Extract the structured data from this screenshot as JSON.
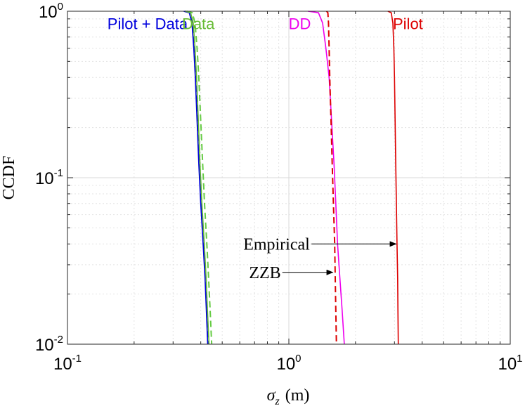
{
  "chart_data": {
    "type": "line",
    "title": "",
    "xlabel_symbol": "σ",
    "xlabel_sub": "z",
    "xlabel_unit": "(m)",
    "ylabel": "CCDF",
    "xscale": "log",
    "yscale": "log",
    "xlim": [
      0.1,
      10
    ],
    "ylim": [
      0.01,
      1
    ],
    "grid": true,
    "x_ticks": [
      {
        "value": 0.1,
        "base": "10",
        "exp": "-1"
      },
      {
        "value": 1,
        "base": "10",
        "exp": "0"
      },
      {
        "value": 10,
        "base": "10",
        "exp": "1"
      }
    ],
    "y_ticks": [
      {
        "value": 0.01,
        "base": "10",
        "exp": "-2"
      },
      {
        "value": 0.1,
        "base": "10",
        "exp": "-1"
      },
      {
        "value": 1,
        "base": "10",
        "exp": "0"
      }
    ],
    "series": [
      {
        "name": "Pilot + Data",
        "color": "#0000dd",
        "style": "solid",
        "x": [
          0.335,
          0.355,
          0.365,
          0.372,
          0.378,
          0.385,
          0.392,
          0.4,
          0.41,
          0.418,
          0.424,
          0.43
        ],
        "y": [
          1.0,
          0.98,
          0.85,
          0.6,
          0.4,
          0.22,
          0.12,
          0.07,
          0.04,
          0.025,
          0.016,
          0.01
        ]
      },
      {
        "name": "Pilot + Data ZZB",
        "color": "#0000dd",
        "style": "dashed",
        "x": [
          0.338,
          0.357,
          0.367,
          0.374,
          0.38,
          0.387,
          0.394,
          0.402,
          0.412,
          0.42,
          0.426,
          0.432
        ],
        "y": [
          1.0,
          0.98,
          0.85,
          0.6,
          0.4,
          0.22,
          0.12,
          0.07,
          0.04,
          0.025,
          0.016,
          0.01
        ]
      },
      {
        "name": "Data",
        "color": "#66bb33",
        "style": "solid",
        "x": [
          0.34,
          0.36,
          0.37,
          0.377,
          0.383,
          0.39,
          0.397,
          0.405,
          0.415,
          0.423,
          0.429,
          0.436
        ],
        "y": [
          1.0,
          0.98,
          0.85,
          0.6,
          0.4,
          0.22,
          0.12,
          0.07,
          0.04,
          0.025,
          0.016,
          0.01
        ]
      },
      {
        "name": "Data ZZB",
        "color": "#66cc44",
        "style": "dashed",
        "x": [
          0.345,
          0.366,
          0.377,
          0.385,
          0.392,
          0.4,
          0.408,
          0.416,
          0.426,
          0.434,
          0.441,
          0.448
        ],
        "y": [
          1.0,
          0.98,
          0.85,
          0.6,
          0.4,
          0.22,
          0.12,
          0.07,
          0.04,
          0.025,
          0.016,
          0.01
        ]
      },
      {
        "name": "DD",
        "color": "#ee00ee",
        "style": "solid",
        "x": [
          1.22,
          1.36,
          1.42,
          1.47,
          1.52,
          1.56,
          1.6,
          1.63,
          1.66,
          1.7,
          1.74,
          1.78
        ],
        "y": [
          1.0,
          0.98,
          0.85,
          0.6,
          0.4,
          0.22,
          0.12,
          0.07,
          0.04,
          0.025,
          0.016,
          0.01
        ]
      },
      {
        "name": "DD ZZB",
        "color": "#dd0000",
        "style": "dashed",
        "x": [
          1.48,
          1.5,
          1.51,
          1.52,
          1.53,
          1.55,
          1.57,
          1.59,
          1.61,
          1.62,
          1.63,
          1.64
        ],
        "y": [
          1.0,
          0.98,
          0.85,
          0.6,
          0.4,
          0.22,
          0.12,
          0.07,
          0.04,
          0.025,
          0.016,
          0.01
        ]
      },
      {
        "name": "Pilot",
        "color": "#dd0000",
        "style": "solid",
        "x": [
          2.8,
          2.9,
          2.95,
          2.98,
          3.0,
          3.02,
          3.04,
          3.06,
          3.08,
          3.1,
          3.11,
          3.12
        ],
        "y": [
          1.0,
          0.98,
          0.85,
          0.6,
          0.4,
          0.22,
          0.12,
          0.07,
          0.04,
          0.025,
          0.016,
          0.01
        ]
      }
    ],
    "legend_labels": [
      {
        "text": "Pilot + Data",
        "color": "#0000dd",
        "x": 0.23,
        "y": 0.78
      },
      {
        "text": "Data",
        "color": "#66bb33",
        "x": 0.39,
        "y": 0.78
      },
      {
        "text": "DD",
        "color": "#ee00ee",
        "x": 1.12,
        "y": 0.78
      },
      {
        "text": "Pilot",
        "color": "#dd0000",
        "x": 3.45,
        "y": 0.78
      }
    ],
    "annotations": [
      {
        "text": "Empirical",
        "text_x": 0.88,
        "text_y": 0.04,
        "arrow_to_x": 3.05,
        "arrow_to_y": 0.04
      },
      {
        "text": "ZZB",
        "text_x": 0.78,
        "text_y": 0.027,
        "arrow_to_x": 1.58,
        "arrow_to_y": 0.027
      }
    ]
  }
}
